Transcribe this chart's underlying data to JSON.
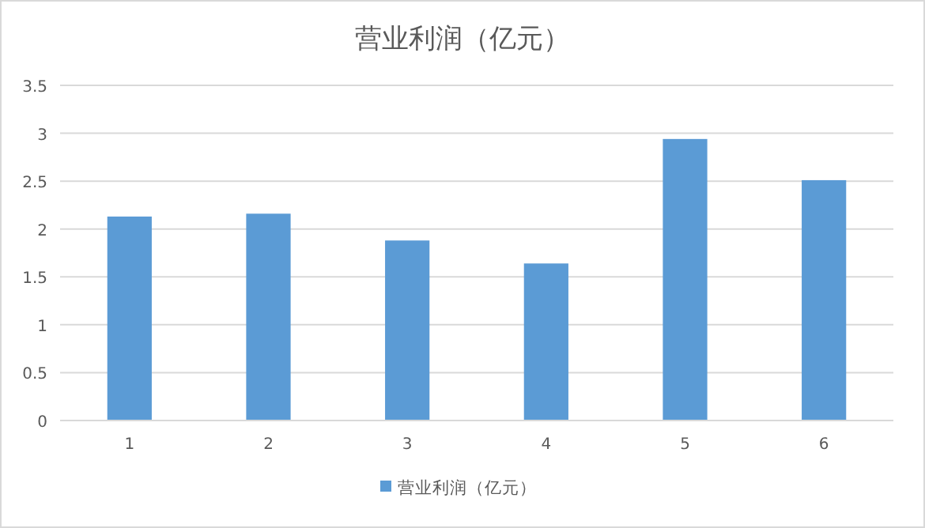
{
  "chart_data": {
    "type": "bar",
    "title": "营业利润（亿元）",
    "categories": [
      "1",
      "2",
      "3",
      "4",
      "5",
      "6"
    ],
    "series": [
      {
        "name": "营业利润（亿元）",
        "color": "#5b9bd5",
        "values": [
          2.13,
          2.16,
          1.88,
          1.64,
          2.94,
          2.51
        ]
      }
    ],
    "ylim": [
      0,
      3.5
    ],
    "yticks": [
      0,
      0.5,
      1,
      1.5,
      2,
      2.5,
      3,
      3.5
    ],
    "grid": "y",
    "legend": "bottom"
  }
}
